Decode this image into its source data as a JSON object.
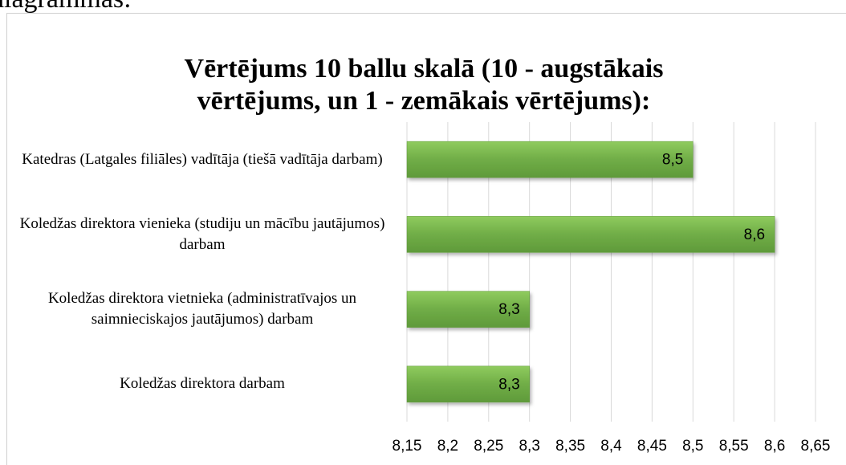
{
  "page_caption": "diagrammas:",
  "chart_data": {
    "type": "bar",
    "orientation": "horizontal",
    "title": "Vērtējums 10 ballu skalā (10 - augstākais vērtējums, un 1 - zemākais vērtējums):",
    "categories": [
      "Katedras (Latgales filiāles) vadītāja (tiešā vadītāja darbam)",
      "Koledžas direktora vienieka (studiju un mācību jautājumos) darbam",
      "Koledžas direktora vietnieka (administratīvajos un saimnieciskajos jautājumos) darbam",
      "Koledžas direktora darbam"
    ],
    "values": [
      8.5,
      8.6,
      8.3,
      8.3
    ],
    "value_labels": [
      "8,5",
      "8,6",
      "8,3",
      "8,3"
    ],
    "color": "#70ad47",
    "xlim": [
      8.15,
      8.65
    ],
    "xticks": [
      {
        "value": 8.15,
        "label": "8,15"
      },
      {
        "value": 8.2,
        "label": "8,2"
      },
      {
        "value": 8.25,
        "label": "8,25"
      },
      {
        "value": 8.3,
        "label": "8,3"
      },
      {
        "value": 8.35,
        "label": "8,35"
      },
      {
        "value": 8.4,
        "label": "8,4"
      },
      {
        "value": 8.45,
        "label": "8,45"
      },
      {
        "value": 8.5,
        "label": "8,5"
      },
      {
        "value": 8.55,
        "label": "8,55"
      },
      {
        "value": 8.6,
        "label": "8,6"
      },
      {
        "value": 8.65,
        "label": "8,65"
      }
    ],
    "grid": true
  }
}
